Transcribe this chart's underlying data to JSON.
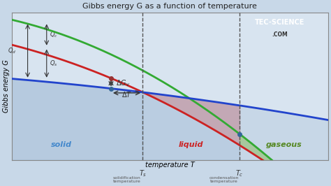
{
  "title": "Gibbs energy G as a function of temperature",
  "xlabel": "temperature T",
  "ylabel": "Gibbs energy G",
  "background_color": "#d8e4f0",
  "grid_color": "#b0b8c8",
  "x_range": [
    0,
    10
  ],
  "y_range": [
    0,
    10
  ],
  "Ts": 3.5,
  "Tc": 7.2,
  "solid_color": "#a8c0d8",
  "solid_label": "solid",
  "solid_label_color": "#4488cc",
  "liquid_color": "#e07070",
  "liquid_label": "liquid",
  "liquid_label_color": "#cc2222",
  "gaseous_color": "#88bb55",
  "gaseous_label": "gaseous",
  "gaseous_label_color": "#558822",
  "green_line_color": "#33aa33",
  "red_line_color": "#cc2222",
  "blue_line_color": "#2244cc",
  "line_width": 2.0,
  "annotation_color": "#333333",
  "dot_color": "#993333",
  "dot_color2": "#336699"
}
